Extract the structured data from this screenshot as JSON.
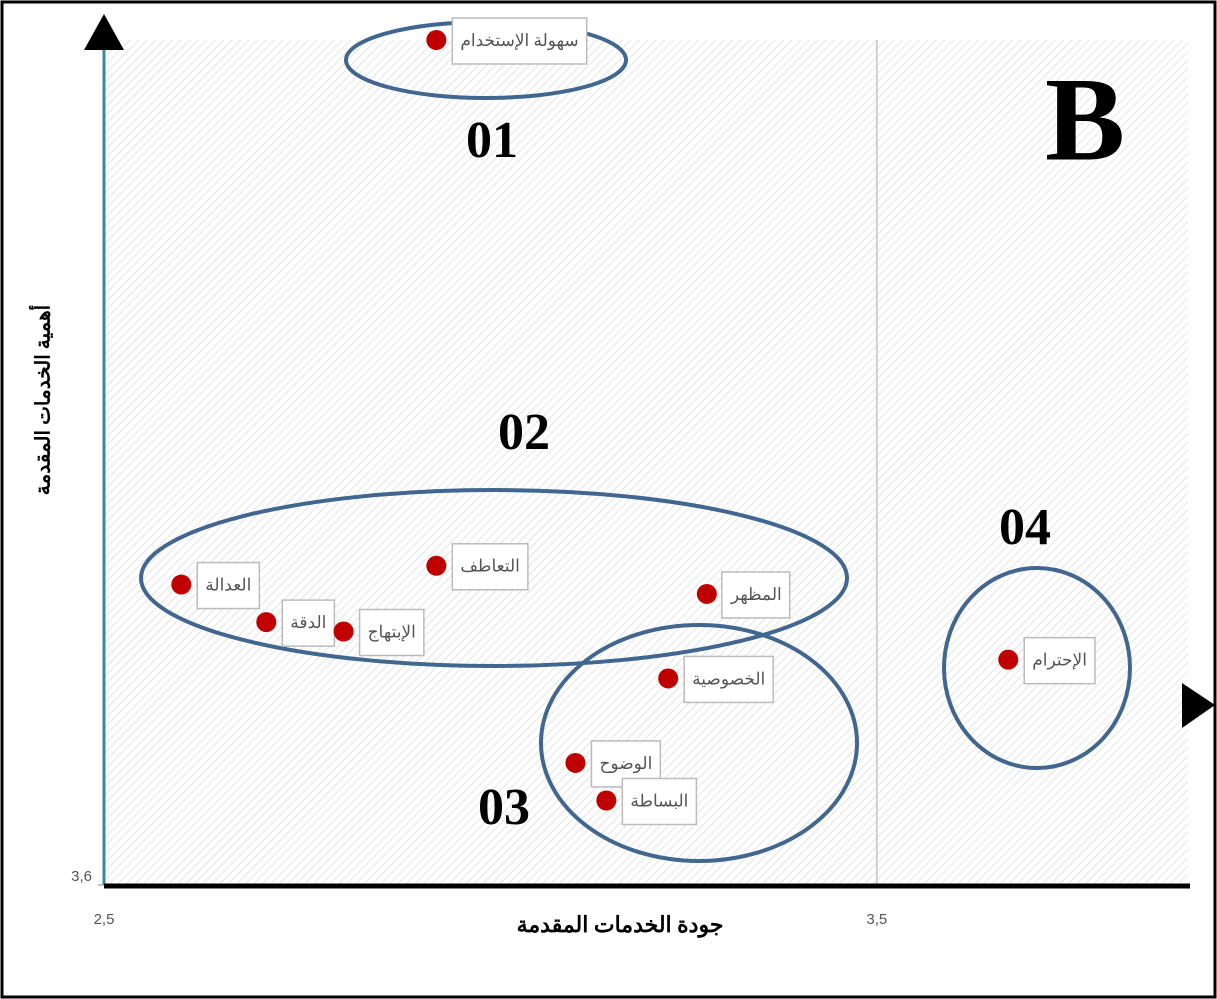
{
  "chart_data": {
    "type": "scatter",
    "x_label": "جودة الخدمات المقدمة",
    "y_label": "أهمية الخدمات المقدمة",
    "labels": [
      "سهولة الإستخدام",
      "العدالة",
      "الدقة",
      "الإبتهاج",
      "التعاطف",
      "المظهر",
      "الخصوصية",
      "الوضوح",
      "البساطة",
      "الإحترام"
    ],
    "x": [
      2.93,
      2.6,
      2.71,
      2.81,
      2.93,
      3.28,
      3.23,
      3.11,
      3.15,
      3.67
    ],
    "values": [
      4.5,
      3.92,
      3.88,
      3.87,
      3.94,
      3.91,
      3.82,
      3.73,
      3.69,
      3.84
    ],
    "color": "#c00000",
    "xlim": [
      2.5,
      3.9
    ],
    "ylim": [
      3.6,
      4.5
    ],
    "xticks": [
      {
        "value": 2.5,
        "label": "2,5"
      },
      {
        "value": 3.5,
        "label": "3,5"
      }
    ],
    "yticks": [
      {
        "value": 3.6,
        "label": "3,6"
      }
    ],
    "annotations": [
      "01",
      "02",
      "03",
      "04",
      "B"
    ]
  }
}
